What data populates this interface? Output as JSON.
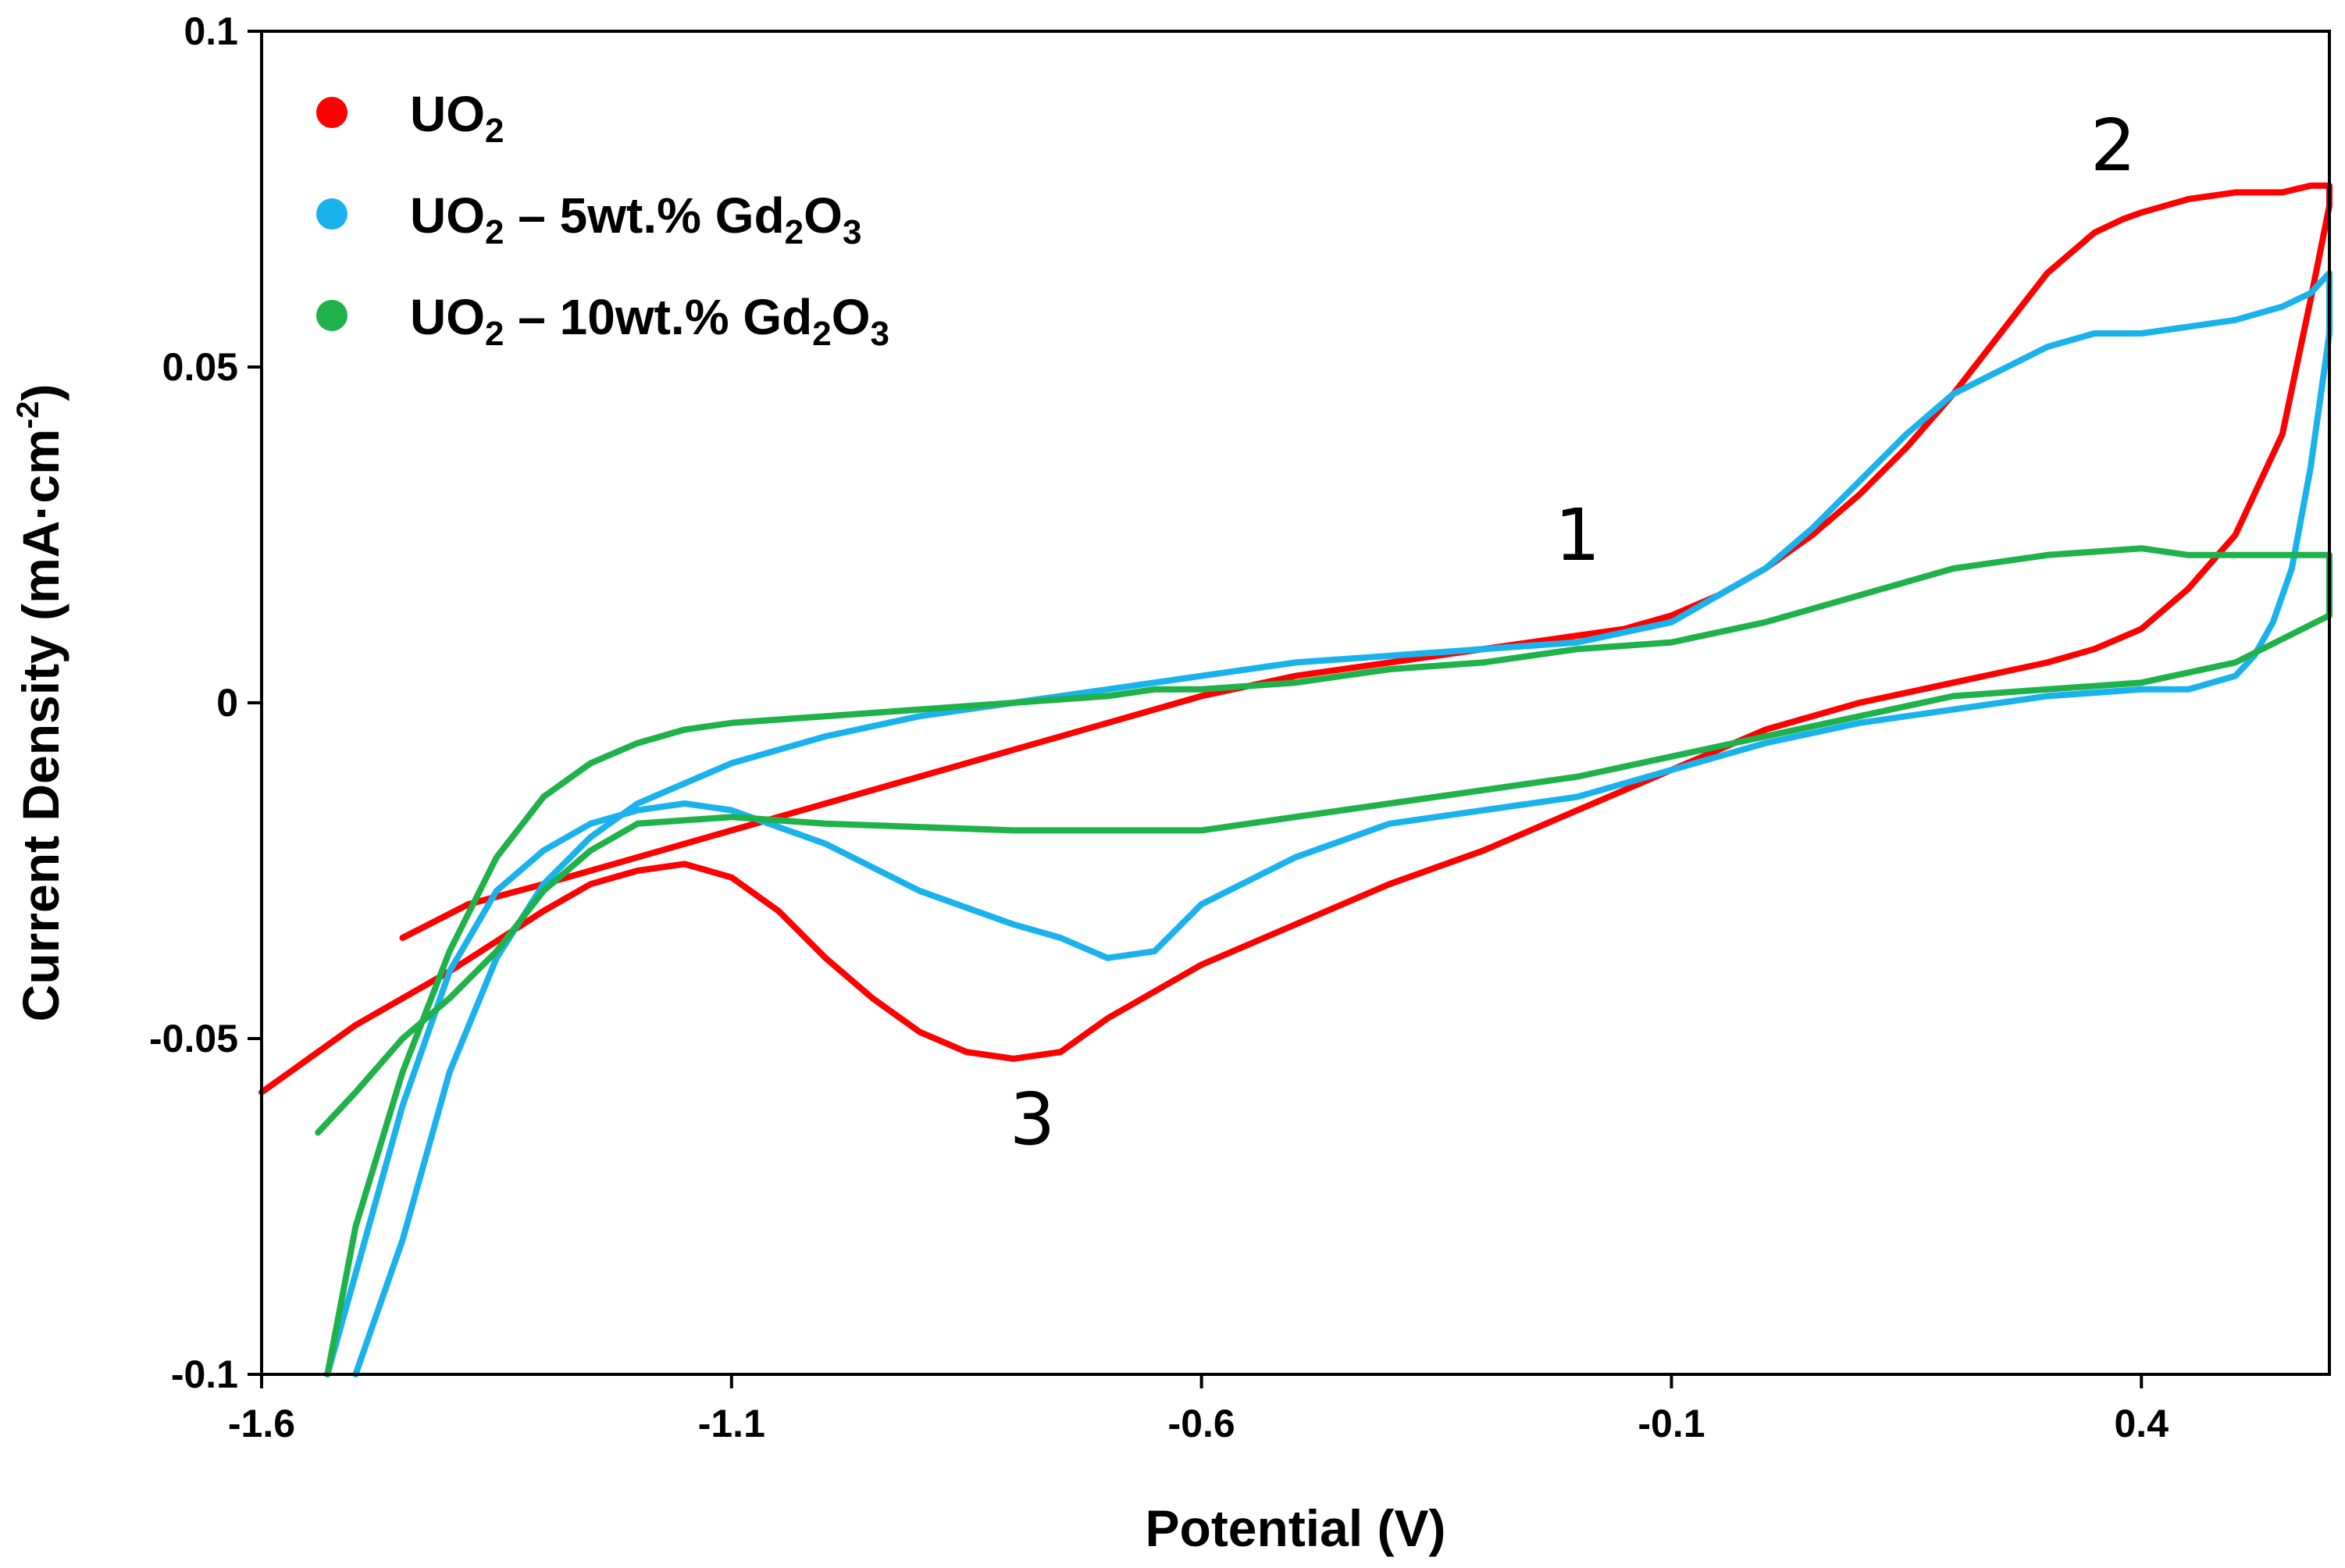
{
  "chart_data": {
    "type": "line",
    "xlabel": "Potential (V)",
    "ylabel": "Current Density  (mA·cm",
    "ylabel_sup": "-2",
    "ylabel_close": ")",
    "xlim": [
      -1.6,
      0.6
    ],
    "ylim": [
      -0.1,
      0.1
    ],
    "x_ticks": [
      -1.6,
      -1.1,
      -0.6,
      -0.1,
      0.4
    ],
    "x_tick_labels": [
      "-1.6",
      "-1.1",
      "-0.6",
      "-0.1",
      "0.4"
    ],
    "y_ticks": [
      -0.1,
      -0.05,
      0,
      0.05,
      0.1
    ],
    "y_tick_labels": [
      "-0.1",
      "-0.05",
      "0",
      "0.05",
      "0.1"
    ],
    "grid": false,
    "legend_position": "top-left",
    "series": [
      {
        "name": "UO2",
        "legend": {
          "base": "UO",
          "sub1": "2",
          "mid": "",
          "sub2": "",
          "tail": "",
          "sub3": ""
        },
        "color": "#ff0000",
        "x": [
          -1.45,
          -1.38,
          -1.3,
          -1.2,
          -1.1,
          -1.0,
          -0.9,
          -0.8,
          -0.7,
          -0.6,
          -0.5,
          -0.4,
          -0.3,
          -0.2,
          -0.15,
          -0.1,
          -0.05,
          0.0,
          0.05,
          0.1,
          0.15,
          0.2,
          0.25,
          0.3,
          0.35,
          0.38,
          0.4,
          0.45,
          0.5,
          0.55,
          0.58,
          0.6,
          0.6,
          0.58,
          0.55,
          0.5,
          0.45,
          0.4,
          0.35,
          0.3,
          0.2,
          0.1,
          0.0,
          -0.1,
          -0.2,
          -0.3,
          -0.4,
          -0.5,
          -0.6,
          -0.7,
          -0.75,
          -0.8,
          -0.85,
          -0.9,
          -0.95,
          -1.0,
          -1.05,
          -1.1,
          -1.15,
          -1.2,
          -1.25,
          -1.3,
          -1.4,
          -1.5,
          -1.6
        ],
        "y": [
          -0.035,
          -0.03,
          -0.027,
          -0.023,
          -0.019,
          -0.015,
          -0.011,
          -0.007,
          -0.003,
          0.001,
          0.004,
          0.006,
          0.008,
          0.01,
          0.011,
          0.013,
          0.016,
          0.02,
          0.025,
          0.031,
          0.038,
          0.046,
          0.055,
          0.064,
          0.07,
          0.072,
          0.073,
          0.075,
          0.076,
          0.076,
          0.077,
          0.077,
          0.074,
          0.06,
          0.04,
          0.025,
          0.017,
          0.011,
          0.008,
          0.006,
          0.003,
          0.0,
          -0.004,
          -0.01,
          -0.016,
          -0.022,
          -0.027,
          -0.033,
          -0.039,
          -0.047,
          -0.052,
          -0.053,
          -0.052,
          -0.049,
          -0.044,
          -0.038,
          -0.031,
          -0.026,
          -0.024,
          -0.025,
          -0.027,
          -0.031,
          -0.04,
          -0.048,
          -0.058
        ]
      },
      {
        "name": "UO2 – 5wt.% Gd2O3",
        "legend": {
          "base": "UO",
          "sub1": "2",
          "mid": " – 5wt.% Gd",
          "sub2": "2",
          "tail": "O",
          "sub3": "3"
        },
        "color": "#1ab2ec",
        "x": [
          -1.5,
          -1.45,
          -1.4,
          -1.35,
          -1.3,
          -1.25,
          -1.2,
          -1.1,
          -1.0,
          -0.9,
          -0.8,
          -0.7,
          -0.6,
          -0.5,
          -0.4,
          -0.3,
          -0.2,
          -0.1,
          -0.05,
          0.0,
          0.05,
          0.1,
          0.15,
          0.2,
          0.3,
          0.35,
          0.4,
          0.5,
          0.55,
          0.58,
          0.6,
          0.6,
          0.58,
          0.56,
          0.54,
          0.52,
          0.5,
          0.45,
          0.4,
          0.3,
          0.2,
          0.1,
          0.0,
          -0.1,
          -0.2,
          -0.3,
          -0.4,
          -0.5,
          -0.6,
          -0.65,
          -0.7,
          -0.75,
          -0.8,
          -0.9,
          -1.0,
          -1.1,
          -1.15,
          -1.2,
          -1.25,
          -1.3,
          -1.35,
          -1.4,
          -1.45,
          -1.5,
          -1.53
        ],
        "y": [
          -0.1,
          -0.08,
          -0.055,
          -0.038,
          -0.027,
          -0.02,
          -0.015,
          -0.009,
          -0.005,
          -0.002,
          0.0,
          0.002,
          0.004,
          0.006,
          0.007,
          0.008,
          0.009,
          0.012,
          0.016,
          0.02,
          0.026,
          0.033,
          0.04,
          0.046,
          0.053,
          0.055,
          0.055,
          0.057,
          0.059,
          0.061,
          0.064,
          0.055,
          0.035,
          0.02,
          0.012,
          0.007,
          0.004,
          0.002,
          0.002,
          0.001,
          -0.001,
          -0.003,
          -0.006,
          -0.01,
          -0.014,
          -0.016,
          -0.018,
          -0.023,
          -0.03,
          -0.037,
          -0.038,
          -0.035,
          -0.033,
          -0.028,
          -0.021,
          -0.016,
          -0.015,
          -0.016,
          -0.018,
          -0.022,
          -0.028,
          -0.04,
          -0.06,
          -0.085,
          -0.1
        ]
      },
      {
        "name": "UO2 – 10wt.% Gd2O3",
        "legend": {
          "base": "UO",
          "sub1": "2",
          "mid": " – 10wt.% Gd",
          "sub2": "2",
          "tail": "O",
          "sub3": "3"
        },
        "color": "#1fb14a",
        "x": [
          -1.54,
          -1.5,
          -1.45,
          -1.4,
          -1.35,
          -1.3,
          -1.25,
          -1.2,
          -1.1,
          -1.0,
          -0.8,
          -0.6,
          -0.4,
          -0.2,
          -0.1,
          0.0,
          0.1,
          0.2,
          0.3,
          0.4,
          0.5,
          0.6,
          0.6,
          0.58,
          0.55,
          0.5,
          0.45,
          0.4,
          0.3,
          0.2,
          0.1,
          0.0,
          -0.1,
          -0.2,
          -0.3,
          -0.4,
          -0.5,
          -0.6,
          -0.65,
          -0.7,
          -0.8,
          -0.9,
          -1.0,
          -1.1,
          -1.15,
          -1.2,
          -1.25,
          -1.3,
          -1.35,
          -1.4,
          -1.45,
          -1.5,
          -1.53
        ],
        "y": [
          -0.064,
          -0.058,
          -0.05,
          -0.044,
          -0.037,
          -0.028,
          -0.022,
          -0.018,
          -0.017,
          -0.018,
          -0.019,
          -0.019,
          -0.015,
          -0.011,
          -0.008,
          -0.005,
          -0.002,
          0.001,
          0.002,
          0.003,
          0.006,
          0.013,
          0.022,
          0.022,
          0.022,
          0.022,
          0.022,
          0.023,
          0.022,
          0.02,
          0.016,
          0.012,
          0.009,
          0.008,
          0.006,
          0.005,
          0.003,
          0.002,
          0.002,
          0.001,
          0.0,
          -0.001,
          -0.002,
          -0.003,
          -0.004,
          -0.006,
          -0.009,
          -0.014,
          -0.023,
          -0.037,
          -0.055,
          -0.078,
          -0.1
        ]
      }
    ],
    "annotations": [
      {
        "text": "1",
        "x": -0.2,
        "y": 0.025
      },
      {
        "text": "2",
        "x": 0.37,
        "y": 0.083
      },
      {
        "text": "3",
        "x": -0.78,
        "y": -0.062
      }
    ]
  }
}
